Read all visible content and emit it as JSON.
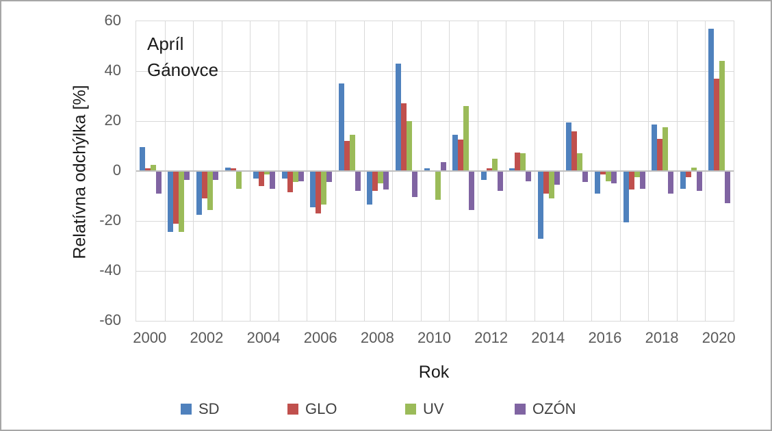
{
  "chart_data": {
    "type": "bar",
    "annotation": [
      "Apríl",
      "Gánovce"
    ],
    "xlabel": "Rok",
    "ylabel": "Relatívna odchýlka [%]",
    "ylim": [
      -60,
      60
    ],
    "ytick_interval": 20,
    "yticks": [
      "60",
      "40",
      "20",
      "0",
      "-20",
      "-40",
      "-60"
    ],
    "ytick_values": [
      60,
      40,
      20,
      0,
      -20,
      -40,
      -60
    ],
    "categories": [
      2000,
      2001,
      2002,
      2003,
      2004,
      2005,
      2006,
      2007,
      2008,
      2009,
      2010,
      2011,
      2012,
      2013,
      2014,
      2015,
      2016,
      2017,
      2018,
      2019,
      2020
    ],
    "xtick_labels": [
      "2000",
      "2002",
      "2004",
      "2006",
      "2008",
      "2010",
      "2012",
      "2014",
      "2016",
      "2018",
      "2020"
    ],
    "grid": true,
    "legend_position": "bottom",
    "series": [
      {
        "name": "SD",
        "color": "#4F81BD",
        "values": [
          9.5,
          -24.5,
          -17.5,
          1.5,
          -3,
          -3,
          -14.5,
          35,
          -13.5,
          43,
          1,
          14.5,
          -3.5,
          1,
          -27,
          19.5,
          -9,
          -20.5,
          18.5,
          -7,
          57
        ]
      },
      {
        "name": "GLO",
        "color": "#C0504D",
        "values": [
          1,
          -21,
          -11,
          1,
          -6,
          -8.5,
          -17,
          12,
          -8,
          27,
          0,
          12.5,
          1,
          7.5,
          -9,
          16,
          -1.5,
          -7.5,
          13,
          -2.5,
          37
        ]
      },
      {
        "name": "UV",
        "color": "#9BBB59",
        "values": [
          2.5,
          -24.5,
          -15.5,
          -7,
          -1.5,
          -4.5,
          -13.5,
          14.5,
          -5,
          20,
          -11.5,
          26,
          5,
          7,
          -11,
          7,
          -4,
          -2.5,
          17.5,
          1.5,
          44
        ]
      },
      {
        "name": "OZÓN",
        "color": "#8064A2",
        "values": [
          -9,
          -3.5,
          -3.5,
          0,
          -7,
          -4,
          -4.5,
          -8,
          -7.5,
          -10.5,
          3.5,
          -15.5,
          -8,
          -4,
          -5.5,
          -4.5,
          -5,
          -7,
          -9,
          -8,
          -13
        ]
      }
    ],
    "colors": {
      "gridline": "#d9d9d9",
      "zero_line": "#bfbfbf",
      "tick_text": "#595959",
      "legend_text": "#404040"
    }
  }
}
